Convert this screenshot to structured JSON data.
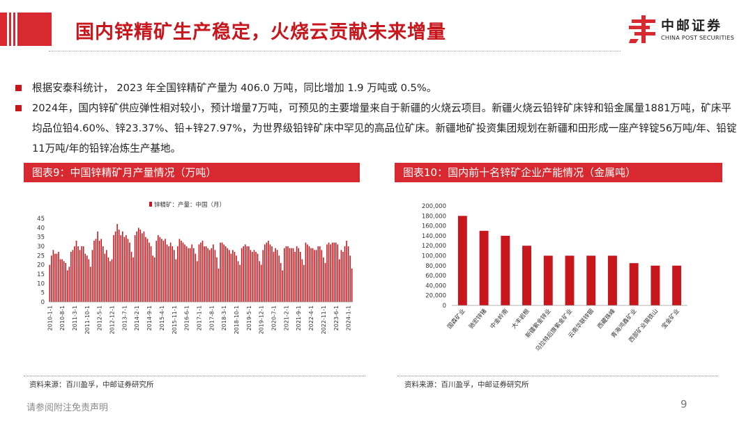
{
  "header": {
    "title": "国内锌精矿生产稳定，火烧云贡献未来增量",
    "logo_cn": "中邮证券",
    "logo_en": "CHINA POST SECURITIES",
    "brand_color": "#d7292f"
  },
  "bullets": [
    "根据安泰科统计， 2023 年全国锌精矿产量为 406.0 万吨，同比增加 1.9 万吨或 0.5%。",
    "2024年，国内锌矿供应弹性相对较小，预计增量7万吨，可预见的主要增量来自于新疆的火烧云项目。新疆火烧云铅锌矿床锌和铅金属量1881万吨，矿床平均品位铅4.60%、锌23.37%、铅+锌27.97%，为世界级铅锌矿床中罕见的高品位矿床。新疆地矿投资集团规划在新疆和田形成一座产锌锭56万吨/年、铅锭11万吨/年的铅锌冶炼生产基地。"
  ],
  "left_panel": {
    "header": "图表9：中国锌精矿月产量情况（万吨）",
    "source": "资料来源：百川盈孚，中邮证券研究所"
  },
  "right_panel": {
    "header": "图表10：国内前十名锌矿企业产能情况（金属吨）",
    "source": "资料来源：百川盈孚，中邮证券研究所"
  },
  "footer": {
    "disclaimer": "请参阅附注免责声明",
    "page_number": "9"
  },
  "chart_data": [
    {
      "type": "bar",
      "title": "",
      "legend": "锌精矿：产量：中国（月）",
      "legend_position": "top",
      "bar_color": "#c8161d",
      "ylim": [
        0,
        45
      ],
      "yticks": [
        0,
        5,
        10,
        15,
        20,
        25,
        30,
        35,
        40,
        45
      ],
      "x_tick_labels": [
        "2010-1-1",
        "2010-8-1",
        "2011-3-1",
        "2011-10-1",
        "2012-5-1",
        "2012-12-1",
        "2013-7-1",
        "2014-2-1",
        "2014-9-1",
        "2015-4-1",
        "2015-11-1",
        "2016-6-1",
        "2017-1-1",
        "2017-8-1",
        "2018-3-1",
        "2018-10-1",
        "2019-5-1",
        "2019-12-1",
        "2020-7-1",
        "2021-2-1",
        "2021-9-1",
        "2022-4-1",
        "2022-11-1",
        "2023-6-1",
        "2024-1-1"
      ],
      "x_start": "2010-1",
      "x_end": "2024-3",
      "values": [
        20,
        25,
        28,
        26,
        26,
        27,
        23,
        23,
        22,
        21,
        17,
        19,
        27,
        28,
        30,
        33,
        30,
        28,
        30,
        30,
        26,
        25,
        23,
        19,
        28,
        33,
        34,
        38,
        33,
        34,
        30,
        26,
        28,
        24,
        22,
        23,
        36,
        38,
        42,
        39,
        36,
        38,
        35,
        36,
        34,
        32,
        27,
        24,
        36,
        38,
        40,
        39,
        37,
        38,
        35,
        34,
        32,
        30,
        25,
        24,
        33,
        36,
        35,
        34,
        33,
        34,
        31,
        30,
        32,
        30,
        28,
        23,
        30,
        34,
        33,
        32,
        31,
        30,
        29,
        29,
        31,
        29,
        26,
        22,
        31,
        32,
        33,
        30,
        30,
        29,
        28,
        29,
        31,
        28,
        24,
        18,
        32,
        32,
        31,
        30,
        29,
        28,
        26,
        28,
        27,
        25,
        22,
        20,
        29,
        30,
        31,
        30,
        30,
        28,
        27,
        28,
        27,
        26,
        22,
        20,
        28,
        31,
        32,
        33,
        31,
        30,
        27,
        29,
        28,
        25,
        21,
        17,
        29,
        30,
        30,
        29,
        29,
        29,
        27,
        30,
        29,
        27,
        23,
        20,
        32,
        31,
        30,
        29,
        29,
        28,
        28,
        30,
        30,
        28,
        24,
        21,
        31,
        32,
        31,
        32,
        32,
        32,
        31,
        23,
        28,
        27,
        30,
        33,
        30,
        25,
        18
      ]
    },
    {
      "type": "bar",
      "title": "",
      "bar_color": "#c8161d",
      "ylim": [
        0,
        200000
      ],
      "yticks": [
        0,
        20000,
        40000,
        60000,
        80000,
        100000,
        120000,
        140000,
        160000,
        180000,
        200000
      ],
      "ytick_labels": [
        "0",
        "20,000",
        "40,000",
        "60,000",
        "80,000",
        "100,000",
        "120,000",
        "140,000",
        "160,000",
        "180,000",
        "200,000"
      ],
      "categories": [
        "国森矿业",
        "驰宏锌锗",
        "中金岭南",
        "大丰岩根",
        "新疆紫金锌业",
        "乌拉特后旗紫金矿业",
        "云南华联锌铟",
        "西藏珠峰",
        "青海鸿鑫矿业",
        "西部矿业锡铁山",
        "宝金矿业"
      ],
      "values": [
        180000,
        150000,
        140000,
        120000,
        100000,
        100000,
        100000,
        100000,
        85000,
        80000,
        80000
      ]
    }
  ]
}
